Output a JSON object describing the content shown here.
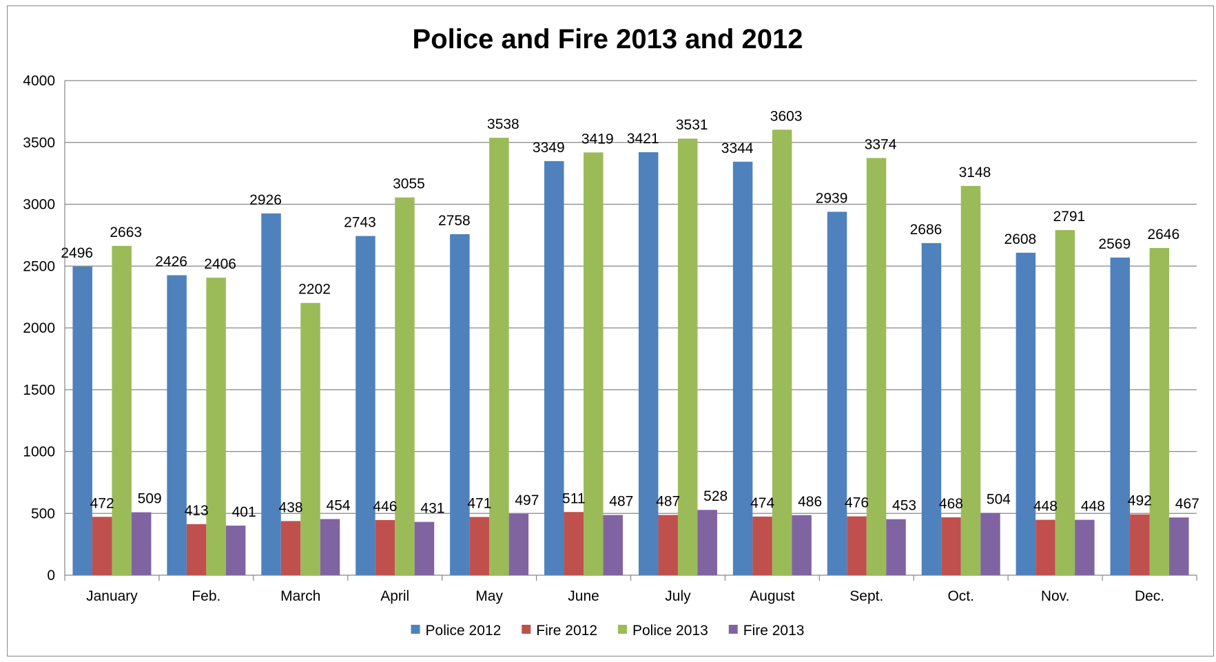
{
  "chart_data": {
    "type": "bar",
    "title": "Police and Fire 2013 and 2012",
    "xlabel": "",
    "ylabel": "",
    "ylim": [
      0,
      4000
    ],
    "yticks": [
      0,
      500,
      1000,
      1500,
      2000,
      2500,
      3000,
      3500,
      4000
    ],
    "grid": true,
    "legend_position": "bottom",
    "categories": [
      "January",
      "Feb.",
      "March",
      "April",
      "May",
      "June",
      "July",
      "August",
      "Sept.",
      "Oct.",
      "Nov.",
      "Dec."
    ],
    "series": [
      {
        "name": "Police 2012",
        "color": "#4F81BD",
        "values": [
          2496,
          2426,
          2926,
          2743,
          2758,
          3349,
          3421,
          3344,
          2939,
          2686,
          2608,
          2569
        ]
      },
      {
        "name": "Fire 2012",
        "color": "#C0504D",
        "values": [
          472,
          413,
          438,
          446,
          471,
          511,
          487,
          474,
          476,
          468,
          448,
          492
        ]
      },
      {
        "name": "Police 2013",
        "color": "#9BBB59",
        "values": [
          2663,
          2406,
          2202,
          3055,
          3538,
          3419,
          3531,
          3603,
          3374,
          3148,
          2791,
          2646
        ]
      },
      {
        "name": "Fire 2013",
        "color": "#8064A2",
        "values": [
          509,
          401,
          454,
          431,
          497,
          487,
          528,
          486,
          453,
          504,
          448,
          467
        ]
      }
    ]
  }
}
